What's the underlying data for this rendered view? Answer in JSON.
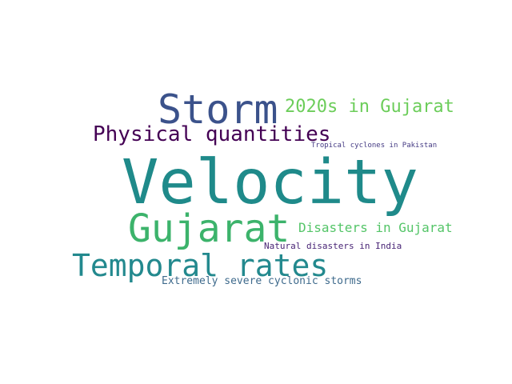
{
  "wordcloud": {
    "background": "#ffffff",
    "words": [
      {
        "text": "Velocity",
        "color": "#1f8a8a"
      },
      {
        "text": "Storm",
        "color": "#3b528b"
      },
      {
        "text": "Gujarat",
        "color": "#3cb36b"
      },
      {
        "text": "Temporal rates",
        "color": "#23898e"
      },
      {
        "text": "Physical quantities",
        "color": "#440154"
      },
      {
        "text": "2020s in Gujarat",
        "color": "#6ccd5a"
      },
      {
        "text": "Disasters in Gujarat",
        "color": "#54c568"
      },
      {
        "text": "Extremely severe cyclonic storms",
        "color": "#3e6a8c"
      },
      {
        "text": "Natural disasters in India",
        "color": "#482475"
      },
      {
        "text": "Tropical cyclones in Pakistan",
        "color": "#443a83"
      }
    ]
  }
}
